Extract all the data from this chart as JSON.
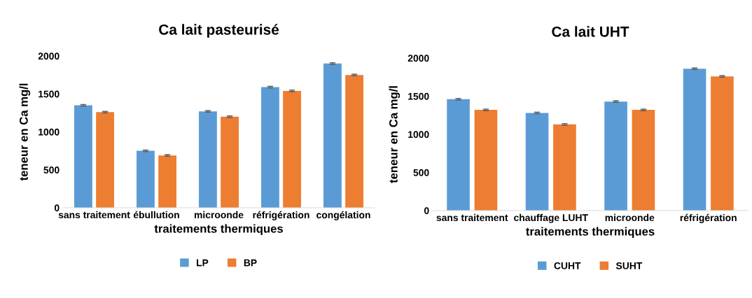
{
  "chart_data": [
    {
      "type": "bar",
      "title": "Ca lait pasteurisé",
      "xlabel": "traitements thermiques",
      "ylabel": "teneur en Ca mg/l",
      "categories": [
        "sans traitement",
        "ébullution",
        "microonde",
        "réfrigération",
        "congélation"
      ],
      "series": [
        {
          "name": "LP",
          "color": "#5b9bd5",
          "values": [
            1350,
            750,
            1270,
            1590,
            1900
          ],
          "errors": [
            10,
            10,
            10,
            10,
            10
          ]
        },
        {
          "name": "BP",
          "color": "#ed7d31",
          "values": [
            1260,
            690,
            1200,
            1540,
            1750
          ],
          "errors": [
            10,
            10,
            10,
            10,
            10
          ]
        }
      ],
      "ylim": [
        0,
        2000
      ],
      "yticks": [
        0,
        500,
        1000,
        1500,
        2000
      ],
      "grid": false,
      "legend": "bottom"
    },
    {
      "type": "bar",
      "title": "Ca lait UHT",
      "xlabel": "traitements thermiques",
      "ylabel": "teneur en Ca mg/l",
      "categories": [
        "sans traitement",
        "chauffage LUHT",
        "microonde",
        "réfrigération"
      ],
      "series": [
        {
          "name": "CUHT",
          "color": "#5b9bd5",
          "values": [
            1460,
            1280,
            1430,
            1860
          ],
          "errors": [
            10,
            10,
            10,
            10
          ]
        },
        {
          "name": "SUHT",
          "color": "#ed7d31",
          "values": [
            1320,
            1130,
            1320,
            1760
          ],
          "errors": [
            10,
            10,
            10,
            10
          ]
        }
      ],
      "ylim": [
        0,
        2000
      ],
      "yticks": [
        0,
        500,
        1000,
        1500,
        2000
      ],
      "grid": false,
      "legend": "bottom"
    }
  ]
}
